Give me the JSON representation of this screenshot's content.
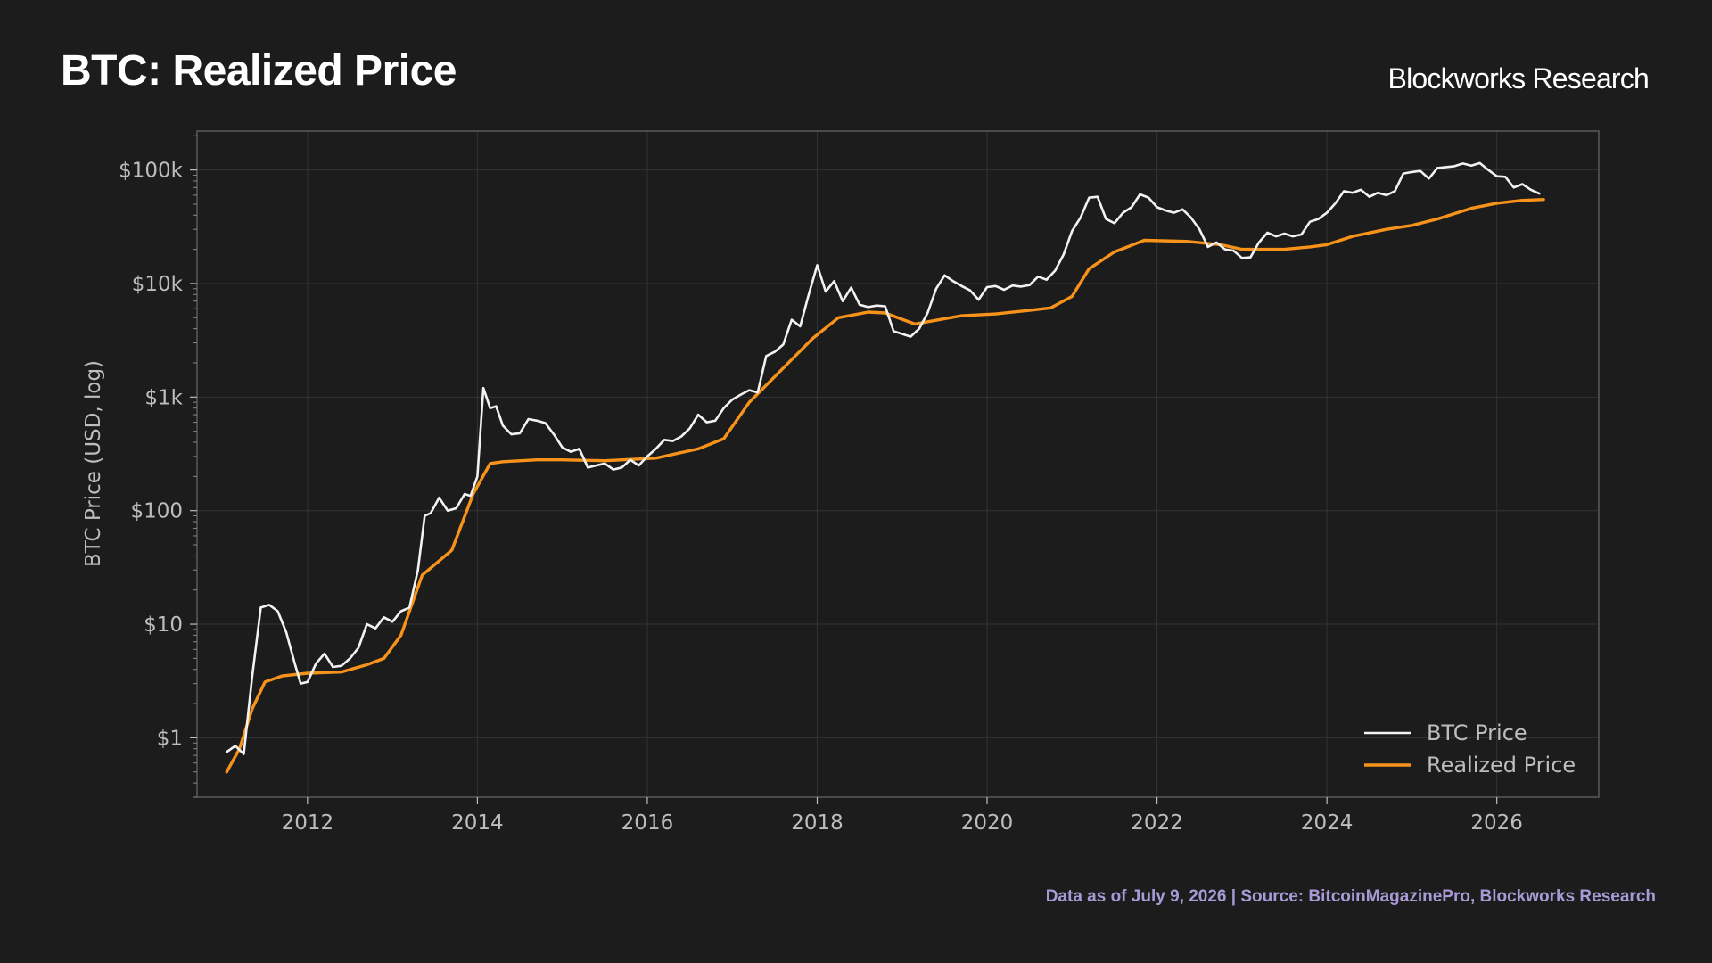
{
  "header": {
    "title": "BTC: Realized Price",
    "brand": "Blockworks Research"
  },
  "footer": {
    "note": "Data as of July 9, 2026 | Source: BitcoinMagazinePro, Blockworks Research"
  },
  "colors": {
    "background": "#1c1c1c",
    "plot_border": "#5a5a5a",
    "grid": "#333333",
    "btc_price": "#f2f2f2",
    "realized_price": "#f7931a",
    "axis_text": "#bdbdbd",
    "footer_text": "#a79ad6"
  },
  "chart_data": {
    "type": "line",
    "title": "BTC: Realized Price",
    "xlabel": "",
    "ylabel": "BTC Price (USD, log)",
    "yscale": "log",
    "xlim": [
      2010.7,
      2027.2
    ],
    "ylim": [
      0.3,
      220000
    ],
    "grid": true,
    "legend_position": "bottom-right",
    "x_ticks": [
      2012,
      2014,
      2016,
      2018,
      2020,
      2022,
      2024,
      2026
    ],
    "x_tick_labels": [
      "2012",
      "2014",
      "2016",
      "2018",
      "2020",
      "2022",
      "2024",
      "2026"
    ],
    "y_ticks": [
      1,
      10,
      100,
      1000,
      10000,
      100000
    ],
    "y_tick_labels": [
      "$1",
      "$10",
      "$100",
      "$1k",
      "$10k",
      "$100k"
    ],
    "series": [
      {
        "name": "BTC Price",
        "color": "#f2f2f2",
        "points": [
          [
            2011.05,
            0.75
          ],
          [
            2011.15,
            0.85
          ],
          [
            2011.25,
            0.72
          ],
          [
            2011.35,
            3.5
          ],
          [
            2011.45,
            14
          ],
          [
            2011.55,
            14.8
          ],
          [
            2011.65,
            13
          ],
          [
            2011.75,
            8.5
          ],
          [
            2011.85,
            4.5
          ],
          [
            2011.92,
            3.0
          ],
          [
            2012.0,
            3.1
          ],
          [
            2012.1,
            4.5
          ],
          [
            2012.2,
            5.5
          ],
          [
            2012.3,
            4.2
          ],
          [
            2012.4,
            4.3
          ],
          [
            2012.5,
            5.0
          ],
          [
            2012.6,
            6.2
          ],
          [
            2012.7,
            10.0
          ],
          [
            2012.8,
            9.2
          ],
          [
            2012.9,
            11.5
          ],
          [
            2013.0,
            10.5
          ],
          [
            2013.1,
            13
          ],
          [
            2013.2,
            14
          ],
          [
            2013.3,
            30
          ],
          [
            2013.38,
            90
          ],
          [
            2013.45,
            95
          ],
          [
            2013.55,
            130
          ],
          [
            2013.65,
            100
          ],
          [
            2013.75,
            105
          ],
          [
            2013.85,
            140
          ],
          [
            2013.92,
            135
          ],
          [
            2014.0,
            200
          ],
          [
            2014.07,
            1200
          ],
          [
            2014.15,
            800
          ],
          [
            2014.22,
            830
          ],
          [
            2014.3,
            560
          ],
          [
            2014.4,
            470
          ],
          [
            2014.5,
            480
          ],
          [
            2014.6,
            640
          ],
          [
            2014.7,
            620
          ],
          [
            2014.8,
            590
          ],
          [
            2014.9,
            470
          ],
          [
            2015.0,
            360
          ],
          [
            2015.1,
            330
          ],
          [
            2015.2,
            350
          ],
          [
            2015.3,
            240
          ],
          [
            2015.4,
            250
          ],
          [
            2015.5,
            260
          ],
          [
            2015.6,
            230
          ],
          [
            2015.7,
            240
          ],
          [
            2015.8,
            280
          ],
          [
            2015.9,
            250
          ],
          [
            2016.0,
            300
          ],
          [
            2016.1,
            350
          ],
          [
            2016.2,
            420
          ],
          [
            2016.3,
            410
          ],
          [
            2016.4,
            450
          ],
          [
            2016.5,
            530
          ],
          [
            2016.6,
            700
          ],
          [
            2016.7,
            600
          ],
          [
            2016.8,
            620
          ],
          [
            2016.9,
            800
          ],
          [
            2017.0,
            950
          ],
          [
            2017.1,
            1050
          ],
          [
            2017.2,
            1150
          ],
          [
            2017.3,
            1100
          ],
          [
            2017.4,
            2300
          ],
          [
            2017.5,
            2500
          ],
          [
            2017.6,
            2900
          ],
          [
            2017.7,
            4800
          ],
          [
            2017.8,
            4200
          ],
          [
            2017.9,
            8000
          ],
          [
            2018.0,
            14500
          ],
          [
            2018.1,
            8500
          ],
          [
            2018.2,
            10500
          ],
          [
            2018.3,
            7000
          ],
          [
            2018.4,
            9200
          ],
          [
            2018.5,
            6500
          ],
          [
            2018.6,
            6200
          ],
          [
            2018.7,
            6400
          ],
          [
            2018.8,
            6300
          ],
          [
            2018.9,
            3800
          ],
          [
            2019.0,
            3600
          ],
          [
            2019.1,
            3400
          ],
          [
            2019.2,
            4000
          ],
          [
            2019.3,
            5500
          ],
          [
            2019.4,
            9000
          ],
          [
            2019.5,
            11800
          ],
          [
            2019.6,
            10500
          ],
          [
            2019.7,
            9500
          ],
          [
            2019.8,
            8700
          ],
          [
            2019.9,
            7200
          ],
          [
            2020.0,
            9300
          ],
          [
            2020.1,
            9500
          ],
          [
            2020.2,
            8800
          ],
          [
            2020.3,
            9600
          ],
          [
            2020.4,
            9400
          ],
          [
            2020.5,
            9700
          ],
          [
            2020.6,
            11500
          ],
          [
            2020.7,
            10800
          ],
          [
            2020.8,
            13000
          ],
          [
            2020.9,
            18000
          ],
          [
            2021.0,
            29000
          ],
          [
            2021.1,
            38000
          ],
          [
            2021.2,
            57000
          ],
          [
            2021.3,
            58000
          ],
          [
            2021.4,
            37000
          ],
          [
            2021.5,
            34000
          ],
          [
            2021.6,
            42000
          ],
          [
            2021.7,
            47000
          ],
          [
            2021.8,
            61000
          ],
          [
            2021.9,
            57000
          ],
          [
            2022.0,
            47000
          ],
          [
            2022.1,
            44000
          ],
          [
            2022.2,
            42000
          ],
          [
            2022.3,
            45000
          ],
          [
            2022.4,
            38000
          ],
          [
            2022.5,
            30000
          ],
          [
            2022.6,
            21000
          ],
          [
            2022.7,
            23000
          ],
          [
            2022.8,
            20000
          ],
          [
            2022.9,
            19500
          ],
          [
            2023.0,
            16800
          ],
          [
            2023.1,
            17000
          ],
          [
            2023.2,
            23000
          ],
          [
            2023.3,
            28000
          ],
          [
            2023.4,
            26000
          ],
          [
            2023.5,
            27500
          ],
          [
            2023.6,
            26000
          ],
          [
            2023.7,
            27000
          ],
          [
            2023.8,
            35000
          ],
          [
            2023.9,
            37000
          ],
          [
            2024.0,
            42000
          ],
          [
            2024.1,
            51000
          ],
          [
            2024.2,
            65000
          ],
          [
            2024.3,
            63000
          ],
          [
            2024.4,
            67000
          ],
          [
            2024.5,
            58000
          ],
          [
            2024.6,
            63000
          ],
          [
            2024.7,
            60000
          ],
          [
            2024.8,
            65000
          ],
          [
            2024.9,
            93000
          ],
          [
            2025.0,
            96000
          ],
          [
            2025.1,
            98000
          ],
          [
            2025.2,
            84000
          ],
          [
            2025.3,
            104000
          ],
          [
            2025.4,
            106000
          ],
          [
            2025.5,
            108000
          ],
          [
            2025.6,
            114000
          ],
          [
            2025.7,
            109000
          ],
          [
            2025.8,
            115000
          ],
          [
            2025.9,
            100000
          ],
          [
            2026.0,
            88000
          ],
          [
            2026.1,
            87000
          ],
          [
            2026.2,
            70000
          ],
          [
            2026.3,
            75000
          ],
          [
            2026.4,
            67000
          ],
          [
            2026.5,
            62000
          ]
        ]
      },
      {
        "name": "Realized Price",
        "color": "#f7931a",
        "points": [
          [
            2011.05,
            0.5
          ],
          [
            2011.2,
            0.8
          ],
          [
            2011.35,
            1.8
          ],
          [
            2011.5,
            3.1
          ],
          [
            2011.7,
            3.5
          ],
          [
            2012.0,
            3.7
          ],
          [
            2012.4,
            3.8
          ],
          [
            2012.7,
            4.4
          ],
          [
            2012.9,
            5.0
          ],
          [
            2013.1,
            8.0
          ],
          [
            2013.35,
            27
          ],
          [
            2013.7,
            45
          ],
          [
            2013.95,
            140
          ],
          [
            2014.15,
            260
          ],
          [
            2014.3,
            270
          ],
          [
            2014.7,
            280
          ],
          [
            2015.0,
            280
          ],
          [
            2015.5,
            275
          ],
          [
            2015.9,
            285
          ],
          [
            2016.1,
            290
          ],
          [
            2016.6,
            350
          ],
          [
            2016.9,
            430
          ],
          [
            2017.2,
            900
          ],
          [
            2017.6,
            1800
          ],
          [
            2017.95,
            3300
          ],
          [
            2018.25,
            5000
          ],
          [
            2018.6,
            5600
          ],
          [
            2018.8,
            5500
          ],
          [
            2019.15,
            4400
          ],
          [
            2019.5,
            4900
          ],
          [
            2019.7,
            5200
          ],
          [
            2020.1,
            5400
          ],
          [
            2020.5,
            5800
          ],
          [
            2020.75,
            6100
          ],
          [
            2021.0,
            7700
          ],
          [
            2021.2,
            13500
          ],
          [
            2021.5,
            19000
          ],
          [
            2021.85,
            24000
          ],
          [
            2022.35,
            23500
          ],
          [
            2022.75,
            22000
          ],
          [
            2023.0,
            20000
          ],
          [
            2023.5,
            20000
          ],
          [
            2023.8,
            21000
          ],
          [
            2024.0,
            22000
          ],
          [
            2024.3,
            26000
          ],
          [
            2024.7,
            30000
          ],
          [
            2025.0,
            32500
          ],
          [
            2025.3,
            37000
          ],
          [
            2025.7,
            46000
          ],
          [
            2026.0,
            51000
          ],
          [
            2026.3,
            54000
          ],
          [
            2026.55,
            55000
          ]
        ]
      }
    ]
  }
}
